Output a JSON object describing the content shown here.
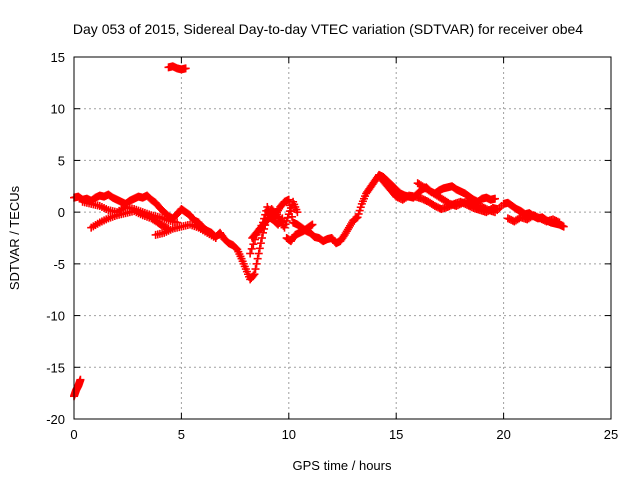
{
  "chart_data": {
    "type": "scatter",
    "title": "Day 053 of 2015, Sidereal Day-to-day VTEC variation (SDTVAR) for receiver obe4",
    "xlabel": "GPS time / hours",
    "ylabel": "SDTVAR / TECUs",
    "xlim": [
      0,
      25
    ],
    "ylim": [
      -20,
      15
    ],
    "xticks": [
      0,
      5,
      10,
      15,
      20,
      25
    ],
    "yticks": [
      -20,
      -15,
      -10,
      -5,
      0,
      5,
      10,
      15
    ],
    "xtick_labels": [
      "0",
      "5",
      "10",
      "15",
      "20",
      "25"
    ],
    "ytick_labels": [
      "-20",
      "-15",
      "-10",
      "-5",
      "0",
      "5",
      "10",
      "15"
    ],
    "grid": true,
    "marker": "plus",
    "color": "#ff0000",
    "series": [
      {
        "name": "SDTVAR",
        "x": [
          0.0,
          0.05,
          0.1,
          0.15,
          0.2,
          0.25,
          0.3,
          4.4,
          4.6,
          4.8,
          5.0,
          5.2,
          0.0,
          0.2,
          0.4,
          0.6,
          0.8,
          1.0,
          1.2,
          1.4,
          1.6,
          1.8,
          2.0,
          2.2,
          2.4,
          2.6,
          2.8,
          3.0,
          3.2,
          3.4,
          3.6,
          3.8,
          4.0,
          4.2,
          4.4,
          4.6,
          4.8,
          5.0,
          5.2,
          5.4,
          5.6,
          5.8,
          6.0,
          6.2,
          6.4,
          6.6,
          6.8,
          7.0,
          7.2,
          7.4,
          7.6,
          7.8,
          8.0,
          8.2,
          8.4,
          8.6,
          8.8,
          9.0,
          9.2,
          9.4,
          9.6,
          9.8,
          10.0,
          10.2,
          10.4,
          10.6,
          10.8,
          11.0,
          11.2,
          11.4,
          11.6,
          11.8,
          12.0,
          12.2,
          12.4,
          12.6,
          12.8,
          13.0,
          13.2,
          13.4,
          13.6,
          13.8,
          14.0,
          14.2,
          14.4,
          14.6,
          14.8,
          15.0,
          15.2,
          15.4,
          15.6,
          15.8,
          16.0,
          16.2,
          16.4,
          16.6,
          16.8,
          17.0,
          17.2,
          17.4,
          17.6,
          17.8,
          18.0,
          18.2,
          18.4,
          18.6,
          18.8,
          19.0,
          19.2,
          19.4,
          19.6,
          0.4,
          0.8,
          1.2,
          1.6,
          2.0,
          2.4,
          2.8,
          3.2,
          3.6,
          4.0,
          4.4,
          4.8,
          0.8,
          1.2,
          1.6,
          2.0,
          2.4,
          2.8,
          3.2,
          3.6,
          3.9,
          4.1,
          4.4,
          3.8,
          4.2,
          4.6,
          5.0,
          5.4,
          5.8,
          6.2,
          6.6,
          8.2,
          8.5,
          8.8,
          9.0,
          9.2,
          9.4,
          9.6,
          9.8,
          10.0,
          10.2,
          10.4,
          9.9,
          10.1,
          10.3,
          10.5,
          10.7,
          10.9,
          11.1,
          8.3,
          8.5,
          8.7,
          8.9,
          9.1,
          9.3,
          9.5,
          9.7,
          14.2,
          14.4,
          14.6,
          14.8,
          15.0,
          15.3,
          15.6,
          15.9,
          16.2,
          16.5,
          16.8,
          17.1,
          17.4,
          17.7,
          18.0,
          18.3,
          18.6,
          18.9,
          19.2,
          19.5,
          19.7,
          16.0,
          16.3,
          16.6,
          16.9,
          17.2,
          17.5,
          17.8,
          18.1,
          18.4,
          18.7,
          19.0,
          19.3,
          19.6,
          20.0,
          20.2,
          20.4,
          20.6,
          20.8,
          21.0,
          21.2,
          21.4,
          21.6,
          21.8,
          22.0,
          22.2,
          22.4,
          22.6,
          22.8,
          20.2,
          20.5,
          20.8,
          21.1,
          21.4,
          21.7,
          22.0,
          22.3,
          22.6
        ],
        "y": [
          -17.8,
          -17.5,
          -17.2,
          -17.0,
          -16.8,
          -16.5,
          -16.2,
          14.0,
          14.1,
          13.9,
          13.8,
          13.9,
          1.4,
          1.5,
          1.2,
          1.3,
          1.1,
          1.4,
          1.6,
          1.5,
          1.7,
          1.4,
          1.2,
          1.0,
          0.8,
          1.1,
          1.3,
          1.5,
          1.4,
          1.6,
          1.2,
          0.9,
          0.4,
          0.0,
          -0.4,
          -0.6,
          -0.2,
          0.3,
          0.0,
          -0.3,
          -0.8,
          -1.0,
          -1.5,
          -1.8,
          -2.0,
          -2.4,
          -2.0,
          -2.6,
          -3.0,
          -3.2,
          -3.6,
          -4.5,
          -5.5,
          -6.5,
          -6.0,
          -4.0,
          -2.0,
          -0.5,
          0.3,
          -0.2,
          0.5,
          1.0,
          1.2,
          -1.0,
          -1.2,
          -1.5,
          -1.8,
          -2.0,
          -2.4,
          -2.5,
          -2.8,
          -2.6,
          -2.5,
          -3.0,
          -2.8,
          -2.2,
          -1.5,
          -0.8,
          -0.5,
          0.8,
          1.8,
          2.4,
          3.0,
          3.6,
          3.4,
          3.0,
          2.6,
          2.2,
          1.8,
          1.6,
          1.5,
          1.4,
          1.8,
          2.2,
          2.4,
          2.0,
          1.8,
          2.1,
          2.3,
          2.4,
          2.5,
          2.2,
          2.0,
          1.8,
          1.5,
          1.2,
          1.0,
          1.3,
          1.4,
          1.2,
          1.3,
          1.0,
          0.8,
          0.6,
          0.2,
          0.0,
          0.5,
          0.3,
          0.0,
          -0.3,
          -0.5,
          -0.8,
          -1.0,
          -1.5,
          -1.0,
          -0.6,
          -0.3,
          -0.1,
          0.1,
          -0.3,
          -0.6,
          -1.0,
          -1.3,
          -1.6,
          -2.2,
          -2.0,
          -1.6,
          -1.4,
          -1.2,
          -1.5,
          -2.0,
          -2.5,
          -4.0,
          -2.2,
          -1.0,
          0.5,
          -0.5,
          0.0,
          -0.8,
          -1.5,
          -0.2,
          1.0,
          0.0,
          -2.5,
          -2.8,
          -2.2,
          -2.0,
          -1.8,
          -1.5,
          -1.2,
          -2.5,
          -2.0,
          -1.5,
          -1.0,
          -0.5,
          -0.8,
          -1.2,
          -0.6,
          3.5,
          3.0,
          2.5,
          2.0,
          1.5,
          1.2,
          1.6,
          1.5,
          1.3,
          1.0,
          0.6,
          0.3,
          0.5,
          0.8,
          1.0,
          0.7,
          0.4,
          0.2,
          0.0,
          0.4,
          0.3,
          2.8,
          2.4,
          2.0,
          1.6,
          1.2,
          0.8,
          0.6,
          0.9,
          1.1,
          0.7,
          0.5,
          0.2,
          0.0,
          0.8,
          0.9,
          0.6,
          0.3,
          0.1,
          -0.2,
          -0.1,
          -0.4,
          -0.6,
          -0.5,
          -0.8,
          -1.0,
          -1.1,
          -1.2,
          -1.4,
          -0.6,
          -0.9,
          -0.5,
          -0.7,
          -0.3,
          -0.6,
          -0.9,
          -0.7,
          -1.0
        ]
      }
    ]
  }
}
